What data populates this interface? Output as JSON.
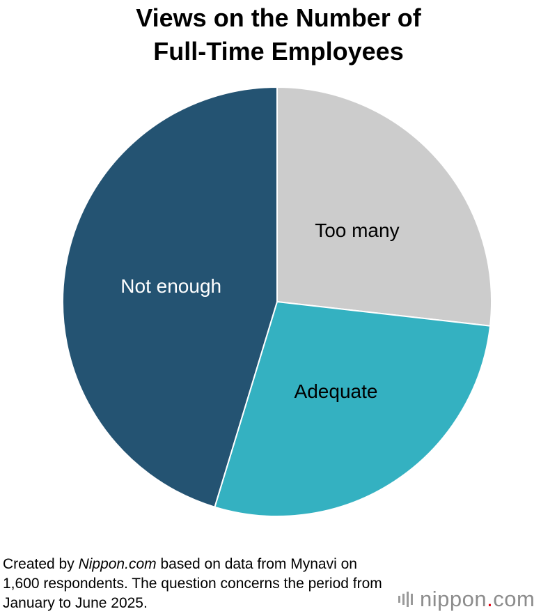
{
  "chart_data": {
    "type": "pie",
    "title": [
      "Views on the Number of",
      "Full-Time Employees"
    ],
    "slices": [
      {
        "label": "Too many",
        "value": 26.8,
        "color": "#cccccc",
        "label_color": "#000000"
      },
      {
        "label": "Adequate",
        "value": 27.9,
        "color": "#34b1c1",
        "label_color": "#000000"
      },
      {
        "label": "Not enough",
        "value": 45.3,
        "color": "#245372",
        "label_color": "#ffffff"
      }
    ],
    "start_angle": "12 o'clock",
    "direction": "clockwise",
    "legend": "none"
  },
  "note": {
    "prefix": "Created by ",
    "source": "Nippon.com",
    "suffix": " based on data from Mynavi on 1,600 respondents. The question concerns the period from January to June 2025."
  },
  "logo": {
    "name": "nippon",
    "dot": ".",
    "domain": "com"
  }
}
